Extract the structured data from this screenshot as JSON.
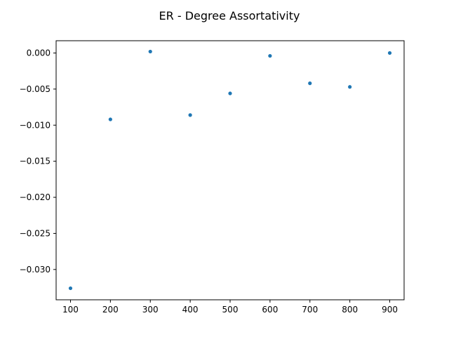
{
  "chart_data": {
    "type": "scatter",
    "title": "ER - Degree Assortativity",
    "xlabel": "",
    "ylabel": "",
    "x": [
      100,
      200,
      300,
      400,
      500,
      600,
      700,
      800,
      900
    ],
    "y": [
      -0.0326,
      -0.0092,
      0.0002,
      -0.0086,
      -0.0056,
      -0.0004,
      -0.0042,
      -0.0047,
      0.0
    ],
    "xlim": [
      64,
      936
    ],
    "ylim": [
      -0.0342,
      0.0017
    ],
    "xticks": [
      100,
      200,
      300,
      400,
      500,
      600,
      700,
      800,
      900
    ],
    "xtick_labels": [
      "100",
      "200",
      "300",
      "400",
      "500",
      "600",
      "700",
      "800",
      "900"
    ],
    "yticks": [
      0.0,
      -0.005,
      -0.01,
      -0.015,
      -0.02,
      -0.025,
      -0.03
    ],
    "ytick_labels": [
      "0.000",
      "−0.005",
      "−0.010",
      "−0.015",
      "−0.020",
      "−0.025",
      "−0.030"
    ],
    "marker_color": "#1f77b4",
    "grid": false,
    "legend": "none"
  }
}
